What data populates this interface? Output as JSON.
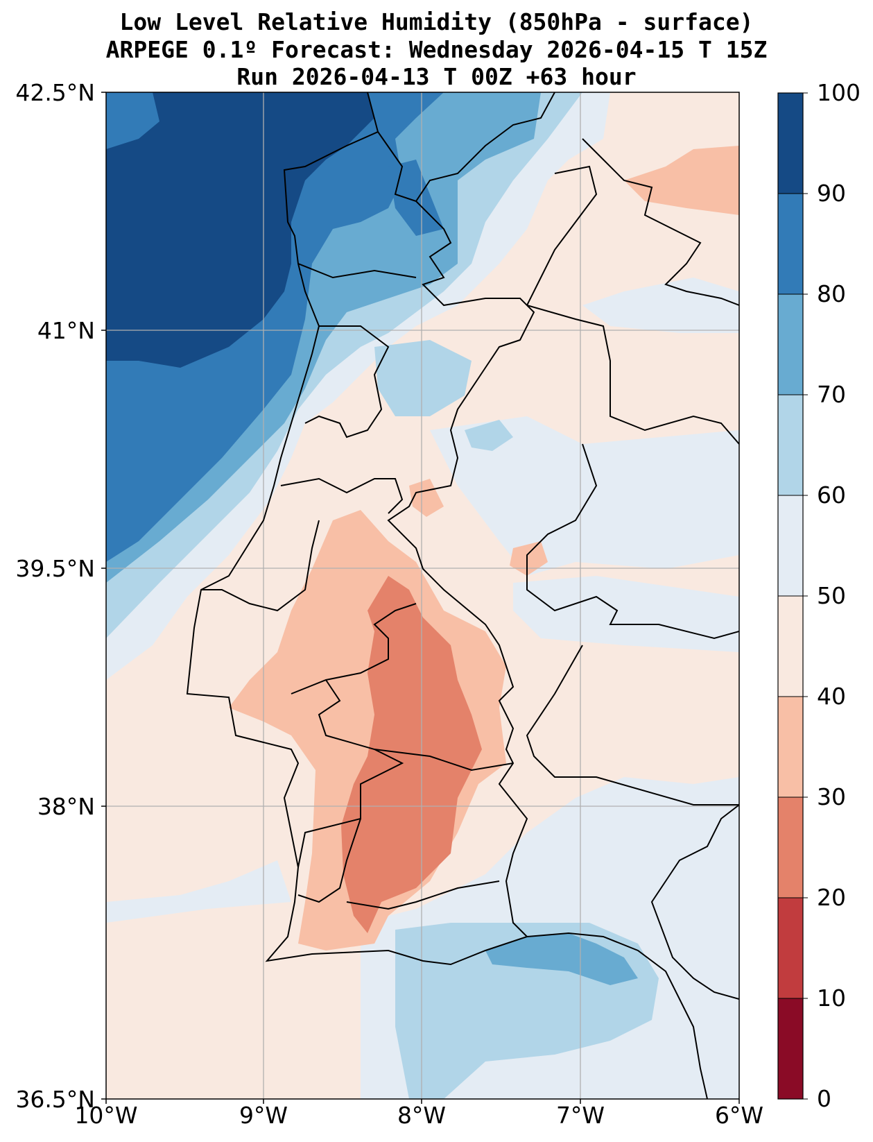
{
  "title": {
    "line1": "Low Level Relative Humidity (850hPa - surface)",
    "line2": "ARPEGE 0.1º Forecast: Wednesday 2026-04-15 T 15Z",
    "line3": "Run 2026-04-13 T 00Z +63 hour"
  },
  "axes": {
    "y_ticks": [
      "42.5°N",
      "41°N",
      "39.5°N",
      "38°N",
      "36.5°N"
    ],
    "x_ticks": [
      "10°W",
      "9°W",
      "8°W",
      "7°W",
      "6°W"
    ]
  },
  "colorbar": {
    "ticks": [
      "100",
      "90",
      "80",
      "70",
      "60",
      "50",
      "40",
      "30",
      "20",
      "10",
      "0"
    ],
    "colors": [
      "#154a85",
      "#327bb7",
      "#68abd1",
      "#b1d5e8",
      "#e4ecf4",
      "#f9e9e0",
      "#f8bfa6",
      "#e4826a",
      "#c13c3e",
      "#8a0b26"
    ]
  },
  "chart_data": {
    "type": "heatmap",
    "title": "Low Level Relative Humidity (850hPa - surface)",
    "subtitle": "ARPEGE 0.1º Forecast: Wednesday 2026-04-15 T 15Z / Run 2026-04-13 T 00Z +63 hour",
    "xlabel": "",
    "ylabel": "",
    "xlim": [
      -10,
      -6
    ],
    "ylim": [
      36.5,
      42.5
    ],
    "levels": [
      0,
      10,
      20,
      30,
      40,
      50,
      60,
      70,
      80,
      90,
      100
    ],
    "units": "%",
    "grid": true,
    "legend": "colorbar-right"
  }
}
